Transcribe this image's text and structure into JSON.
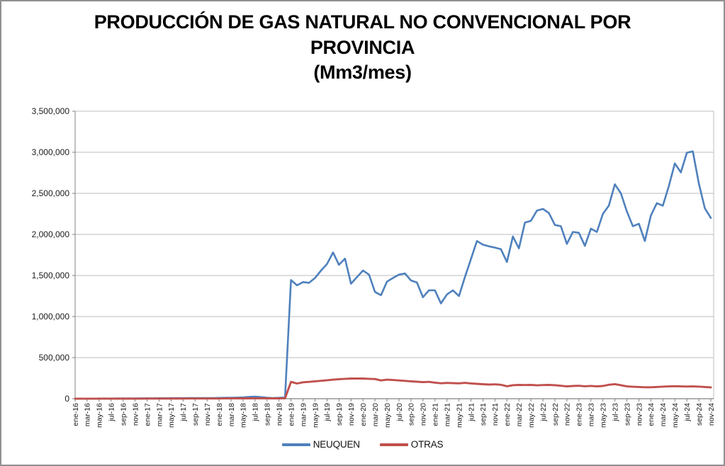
{
  "chart_data": {
    "type": "line",
    "title_lines": [
      "PRODUCCIÓN DE GAS NATURAL NO CONVENCIONAL POR",
      "PROVINCIA",
      "(Mm3/mes)"
    ],
    "frequency": "monthly",
    "x_start": "ene-16",
    "x_end": "nov-24",
    "x_tick_labels": [
      "ene-16",
      "mar-16",
      "may-16",
      "jul-16",
      "sep-16",
      "nov-16",
      "ene-17",
      "mar-17",
      "may-17",
      "jul-17",
      "sep-17",
      "nov-17",
      "ene-18",
      "mar-18",
      "may-18",
      "jul-18",
      "sep-18",
      "nov-18",
      "ene-19",
      "mar-19",
      "may-19",
      "jul-19",
      "sep-19",
      "nov-19",
      "ene-20",
      "mar-20",
      "may-20",
      "jul-20",
      "sep-20",
      "nov-20",
      "ene-21",
      "mar-21",
      "may-21",
      "jul-21",
      "sep-21",
      "nov-21",
      "ene-22",
      "mar-22",
      "may-22",
      "jul-22",
      "sep-22",
      "nov-22",
      "ene-23",
      "mar-23",
      "may-23",
      "jul-23",
      "sep-23",
      "nov-23",
      "ene-24",
      "mar-24",
      "may-24",
      "jul-24",
      "sep-24",
      "nov-24"
    ],
    "y_axis": {
      "min": 0,
      "max": 3500000,
      "tick_step": 500000,
      "tick_labels": [
        "0",
        "500,000",
        "1,000,000",
        "1,500,000",
        "2,000,000",
        "2,500,000",
        "3,000,000",
        "3,500,000"
      ]
    },
    "grid": true,
    "legend_position": "bottom",
    "series": [
      {
        "name": "NEUQUEN",
        "color": "#4F81BD",
        "values": [
          1000,
          1500,
          2000,
          2000,
          2500,
          3000,
          3000,
          3500,
          4000,
          4000,
          4500,
          5000,
          5000,
          5500,
          6000,
          6000,
          6500,
          7000,
          7000,
          7500,
          8000,
          8000,
          8500,
          9000,
          10000,
          11000,
          12000,
          14000,
          16000,
          22000,
          26000,
          20000,
          12000,
          9000,
          11000,
          15000,
          1445000,
          1380000,
          1420000,
          1410000,
          1470000,
          1560000,
          1640000,
          1780000,
          1630000,
          1705000,
          1400000,
          1480000,
          1560000,
          1510000,
          1300000,
          1260000,
          1425000,
          1470000,
          1510000,
          1525000,
          1440000,
          1415000,
          1235000,
          1320000,
          1320000,
          1160000,
          1270000,
          1320000,
          1250000,
          1480000,
          1700000,
          1920000,
          1875000,
          1855000,
          1840000,
          1820000,
          1665000,
          1975000,
          1830000,
          2145000,
          2165000,
          2290000,
          2310000,
          2260000,
          2115000,
          2100000,
          1885000,
          2030000,
          2020000,
          1860000,
          2070000,
          2030000,
          2250000,
          2350000,
          2610000,
          2500000,
          2280000,
          2100000,
          2130000,
          1920000,
          2230000,
          2380000,
          2350000,
          2590000,
          2865000,
          2755000,
          2995000,
          3010000,
          2620000,
          2320000,
          2200000
        ]
      },
      {
        "name": "OTRAS",
        "color": "#C0504D",
        "values": [
          500,
          500,
          500,
          500,
          500,
          500,
          1000,
          1000,
          1000,
          1000,
          1000,
          1000,
          1500,
          1500,
          1500,
          2000,
          2000,
          2000,
          2000,
          2500,
          2500,
          2500,
          3000,
          3000,
          3000,
          3500,
          3500,
          4000,
          4000,
          4500,
          5000,
          5000,
          4500,
          4000,
          4500,
          5000,
          205000,
          185000,
          200000,
          205000,
          212000,
          218000,
          225000,
          232000,
          238000,
          242000,
          246000,
          246000,
          246000,
          242000,
          240000,
          222000,
          232000,
          228000,
          222000,
          217000,
          212000,
          207000,
          202000,
          205000,
          196000,
          188000,
          192000,
          190000,
          187000,
          193000,
          186000,
          181000,
          177000,
          172000,
          175000,
          170000,
          152000,
          165000,
          168000,
          166000,
          168000,
          163000,
          166000,
          168000,
          165000,
          158000,
          150000,
          155000,
          158000,
          152000,
          156000,
          150000,
          155000,
          170000,
          178000,
          165000,
          150000,
          146000,
          143000,
          140000,
          140000,
          143000,
          147000,
          150000,
          153000,
          150000,
          148000,
          150000,
          147000,
          143000,
          138000
        ]
      }
    ],
    "style": {
      "gridline_color": "#BEBEBE",
      "plot_border_color": "#BEBEBE",
      "axis_color": "#808080",
      "label_color": "#1a1a1a"
    }
  }
}
